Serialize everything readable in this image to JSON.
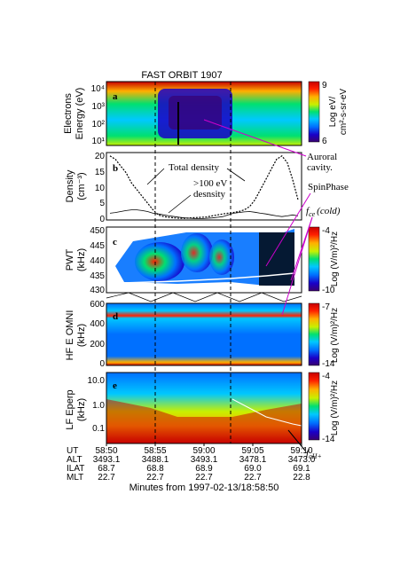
{
  "title": "FAST ORBIT 1907",
  "colors": {
    "spectrum": [
      "#3a0070",
      "#1a00c8",
      "#0070ff",
      "#00c8ff",
      "#00e070",
      "#c8f000",
      "#ffb000",
      "#ff2000",
      "#c80000"
    ],
    "annotation": "#cc00cc"
  },
  "chart_data": [
    {
      "type": "heatmap",
      "panel": "a",
      "ylabel_line1": "Electrons",
      "ylabel_line2": "Energy (eV)",
      "yticks": [
        "10⁴",
        "10³",
        "10²",
        "10¹"
      ],
      "colorbar": {
        "max": "9",
        "min": "6",
        "label_line1": "Log eV/",
        "label_line2": "cm²-s-sr-eV"
      }
    },
    {
      "type": "line",
      "panel": "b",
      "ylabel_line1": "Density",
      "ylabel_line2": "(cm⁻³)",
      "yticks": [
        "20",
        "15",
        "10",
        "5",
        "0"
      ],
      "ylim": [
        0,
        20
      ],
      "series": [
        {
          "name": "Total density",
          "values": [
            19,
            18,
            16,
            14,
            11,
            9,
            7,
            5,
            3,
            1.5,
            1,
            0.8,
            0.6,
            0.5,
            0.5,
            0.6,
            0.7,
            0.8,
            0.9,
            1.2,
            1.5,
            1.8,
            2,
            2.2,
            2.5,
            3,
            4,
            6,
            9,
            12,
            15,
            18,
            19,
            17,
            12,
            6
          ]
        },
        {
          "name": ">100 eV desnsity",
          "values": [
            2,
            2.2,
            2.5,
            2.8,
            3,
            3,
            2.8,
            2.5,
            2,
            1.8,
            1.5,
            1.2,
            1,
            0.8,
            0.6,
            0.5,
            0.4,
            0.4,
            0.5,
            0.6,
            0.8,
            1,
            1.5,
            2,
            2.2,
            2.4,
            2.5,
            2.3,
            2,
            1.8,
            1.5,
            1.2,
            1,
            1.2,
            1.5,
            1.2
          ]
        }
      ],
      "annotations": [
        "Total density",
        ">100 eV",
        "desnsity"
      ]
    },
    {
      "type": "heatmap",
      "panel": "c",
      "ylabel": "PWT",
      "ylabel_unit": "(kHz)",
      "yticks": [
        "450",
        "445",
        "440",
        "435",
        "430"
      ],
      "colorbar": {
        "max": "-4",
        "min": "-10",
        "label": "Log (V/m)²/Hz"
      }
    },
    {
      "type": "heatmap",
      "panel": "d",
      "ylabel": "HF E OMNI",
      "ylabel_unit": "(kHz)",
      "yticks": [
        "600",
        "400",
        "200",
        "0"
      ],
      "colorbar": {
        "max": "-7",
        "min": "-14",
        "label": "Log (V/m)²/Hz"
      }
    },
    {
      "type": "heatmap",
      "panel": "e",
      "ylabel": "LF Eperp",
      "ylabel_unit": "(kHz)",
      "yticks": [
        "10.0",
        "1.0",
        "0.1"
      ],
      "colorbar": {
        "max": "-4",
        "min": "-14",
        "label": "Log (V/m)²/Hz"
      }
    }
  ],
  "annotations": {
    "auroral_cavity_line1": "Auroral",
    "auroral_cavity_line2": "cavity.",
    "spin_phase": "SpinPhase",
    "fce_main": "f",
    "fce_sub": "ce",
    "fce_tail": "(cold)",
    "fch_main": "f",
    "fch_sub": "cH+"
  },
  "axis_table": {
    "row_labels": [
      "UT",
      "ALT",
      "ILAT",
      "MLT"
    ],
    "columns": [
      {
        "ut": "58:50",
        "alt": "3493.1",
        "ilat": "68.7",
        "mlt": "22.7"
      },
      {
        "ut": "58:55",
        "alt": "3488.1",
        "ilat": "68.8",
        "mlt": "22.7"
      },
      {
        "ut": "59:00",
        "alt": "3493.1",
        "ilat": "68.9",
        "mlt": "22.7"
      },
      {
        "ut": "59:05",
        "alt": "3478.1",
        "ilat": "69.0",
        "mlt": "22.7"
      },
      {
        "ut": "59:10",
        "alt": "3473.0",
        "ilat": "69.1",
        "mlt": "22.8"
      }
    ],
    "xlabel": "Minutes from 1997-02-13/18:58:50"
  },
  "panel_letters": [
    "a",
    "b",
    "c",
    "d",
    "e"
  ]
}
